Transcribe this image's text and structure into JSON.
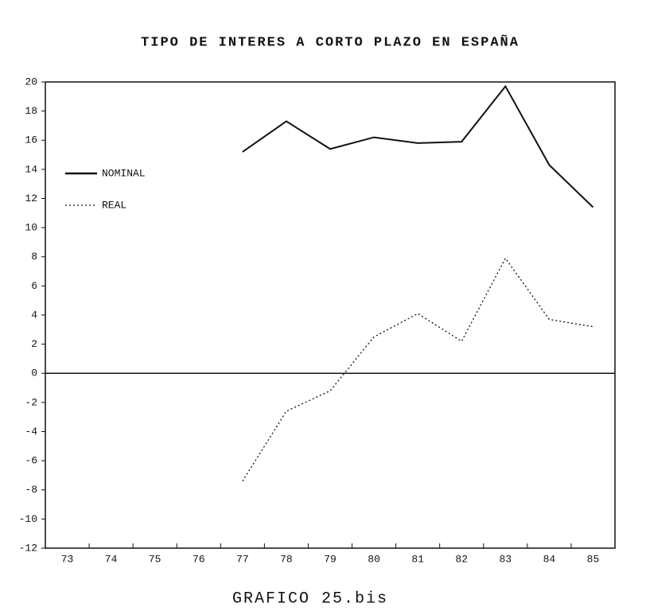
{
  "chart_data": {
    "type": "line",
    "title": "TIPO DE INTERES A CORTO PLAZO EN ESPAÑA",
    "caption": "GRAFICO 25.bis",
    "categories": [
      "73",
      "74",
      "75",
      "76",
      "77",
      "78",
      "79",
      "80",
      "81",
      "82",
      "83",
      "84",
      "85"
    ],
    "series": [
      {
        "name": "NOMINAL",
        "color": "#111111",
        "style": "solid",
        "values": [
          null,
          null,
          null,
          null,
          15.2,
          17.3,
          15.4,
          16.2,
          15.8,
          15.9,
          19.7,
          14.3,
          11.4
        ]
      },
      {
        "name": "REAL",
        "color": "#111111",
        "style": "dotted",
        "values": [
          null,
          null,
          null,
          null,
          -7.4,
          -2.6,
          -1.2,
          2.5,
          4.1,
          2.2,
          7.9,
          3.7,
          3.2
        ]
      }
    ],
    "ylim": [
      -12,
      20
    ],
    "yticks": [
      -12,
      -10,
      -8,
      -6,
      -4,
      -2,
      0,
      2,
      4,
      6,
      8,
      10,
      12,
      14,
      16,
      18,
      20
    ],
    "legend": "upper left",
    "grid": false
  }
}
